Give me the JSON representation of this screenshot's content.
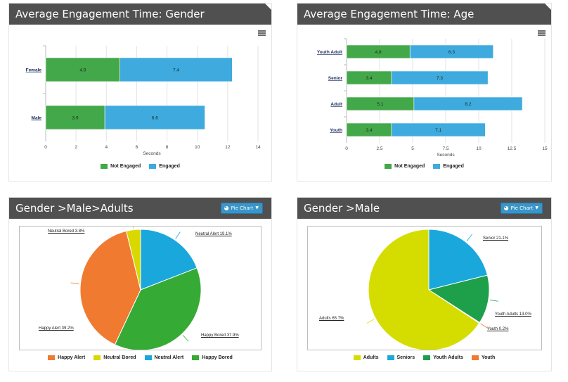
{
  "colors": {
    "header_bg": "#505050",
    "not_engaged": "#43a84a",
    "engaged": "#3eaade",
    "happy_alert": "#f07a30",
    "neutral_bored": "#d9d900",
    "neutral_alert": "#1aa8dc",
    "happy_bored": "#35aa35",
    "adults": "#d5dd00",
    "seniors": "#1aa8dc",
    "youth_adults": "#1ea04a",
    "youth": "#f07a30",
    "button": "#3a95c8"
  },
  "panels": {
    "gender": {
      "title": "Average Engagement Time: Gender",
      "menu_icon": "hamburger-icon",
      "axis_title": "Seconds",
      "legend": [
        "Not Engaged",
        "Engaged"
      ]
    },
    "age": {
      "title": "Average Engagement Time: Age",
      "axis_title": "Seconds",
      "legend": [
        "Not Engaged",
        "Engaged"
      ]
    },
    "male_adults": {
      "title": "Gender >Male>Adults",
      "button_label": "Pie Chart",
      "button_icon": "pie-chart-icon",
      "legend": [
        "Happy Alert",
        "Neutral Bored",
        "Neutral Alert",
        "Happy Bored"
      ]
    },
    "male": {
      "title": "Gender >Male",
      "button_label": "Pie Chart",
      "button_icon": "pie-chart-icon",
      "legend": [
        "Adults",
        "Seniors",
        "Youth Adults",
        "Youth"
      ]
    }
  },
  "chart_data": [
    {
      "type": "bar",
      "orientation": "horizontal",
      "stacked": true,
      "title": "Average Engagement Time: Gender",
      "categories": [
        "Female",
        "Male"
      ],
      "series": [
        {
          "name": "Not Engaged",
          "values": [
            4.9,
            3.9
          ]
        },
        {
          "name": "Engaged",
          "values": [
            7.4,
            6.6
          ]
        }
      ],
      "xlabel": "Seconds",
      "xlim": [
        0,
        14
      ],
      "ticks": [
        "0",
        "2",
        "4",
        "6",
        "8",
        "10",
        "12",
        "14"
      ],
      "grid": true,
      "legend": "bottom"
    },
    {
      "type": "bar",
      "orientation": "horizontal",
      "stacked": true,
      "title": "Average Engagement Time: Age",
      "categories": [
        "Youth Adult",
        "Senior",
        "Adult",
        "Youth"
      ],
      "series": [
        {
          "name": "Not Engaged",
          "values": [
            4.8,
            3.4,
            5.1,
            3.4
          ]
        },
        {
          "name": "Engaged",
          "values": [
            6.3,
            7.3,
            8.2,
            7.1
          ]
        }
      ],
      "xlabel": "Seconds",
      "xlim": [
        0,
        15
      ],
      "ticks": [
        "0",
        "2.5",
        "5",
        "7.5",
        "10",
        "12.5",
        "15"
      ],
      "grid": true,
      "legend": "bottom"
    },
    {
      "type": "pie",
      "title": "Gender >Male>Adults",
      "slices": [
        {
          "name": "Neutral Alert",
          "value": 19.1,
          "label": "Neutral Alert 19.1%"
        },
        {
          "name": "Happy Bored",
          "value": 37.9,
          "label": "Happy Bored 37.9%"
        },
        {
          "name": "Happy Alert",
          "value": 39.2,
          "label": "Happy Alert 39.2%"
        },
        {
          "name": "Neutral Bored",
          "value": 3.8,
          "label": "Neutral Bored 3.8%"
        }
      ],
      "legend": "bottom"
    },
    {
      "type": "pie",
      "title": "Gender >Male",
      "slices": [
        {
          "name": "Seniors",
          "value": 21.1,
          "label": "Senior 21.1%"
        },
        {
          "name": "Youth Adults",
          "value": 13.0,
          "label": "Youth Adults 13.0%"
        },
        {
          "name": "Youth",
          "value": 0.2,
          "label": "Youth 0.2%"
        },
        {
          "name": "Adults",
          "value": 65.7,
          "label": "Adults 65.7%"
        }
      ],
      "legend": "bottom"
    }
  ]
}
